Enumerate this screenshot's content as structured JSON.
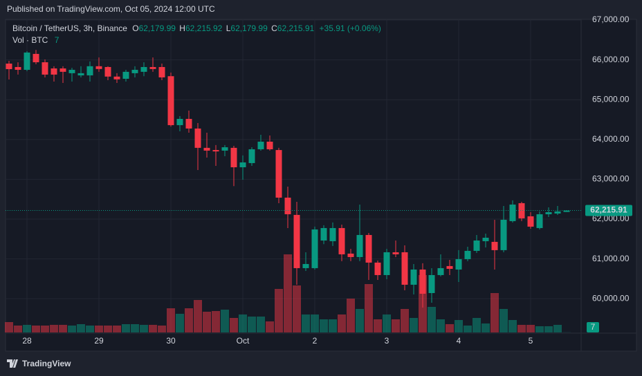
{
  "header": {
    "published": "Published on TradingView.com, Oct 05, 2024 12:00 UTC",
    "brand": "TradingView"
  },
  "chart_data": {
    "type": "candlestick",
    "title": "Bitcoin / TetherUS, 3h, Binance",
    "legend": {
      "o_label": "O",
      "o": "62,179.99",
      "h_label": "H",
      "h": "62,215.92",
      "l_label": "L",
      "l": "62,179.99",
      "c_label": "C",
      "c": "62,215.91",
      "change": "+35.91 (+0.06%)"
    },
    "volume_title": "Vol · BTC",
    "categories": [
      null,
      null,
      "28",
      null,
      null,
      null,
      null,
      null,
      null,
      null,
      "29",
      null,
      null,
      null,
      null,
      null,
      null,
      null,
      "30",
      null,
      null,
      null,
      null,
      null,
      null,
      null,
      "Oct",
      null,
      null,
      null,
      null,
      null,
      null,
      null,
      "2",
      null,
      null,
      null,
      null,
      null,
      null,
      null,
      "3",
      null,
      null,
      null,
      null,
      null,
      null,
      null,
      "4",
      null,
      null,
      null,
      null,
      null,
      null,
      null,
      "5",
      null,
      null,
      null,
      null
    ],
    "open": [
      65906,
      65820,
      65750,
      66150,
      65940,
      65785,
      65785,
      65665,
      65610,
      65610,
      65840,
      65820,
      65580,
      65525,
      65665,
      65700,
      65820,
      65820,
      65590,
      64360,
      64517,
      64275,
      63790,
      63735,
      63720,
      63790,
      63302,
      63407,
      63754,
      63945,
      63735,
      62539,
      62105,
      60768,
      60768,
      61462,
      61445,
      61775,
      61133,
      61046,
      61601,
      60907,
      60594,
      61167,
      61167,
      60351,
      60733,
      60142,
      60594,
      60820,
      60733,
      60994,
      61202,
      61445,
      61428,
      61220,
      61949,
      62400,
      62070,
      61775,
      62122,
      62140,
      62179.99
    ],
    "high": [
      65976,
      65940,
      66220,
      66250,
      66010,
      65840,
      65840,
      65800,
      65840,
      65960,
      66060,
      65840,
      65665,
      65750,
      65840,
      65940,
      66060,
      65906,
      65680,
      64587,
      64725,
      64413,
      64170,
      63860,
      63860,
      63840,
      63600,
      63806,
      64118,
      64100,
      63790,
      62816,
      62435,
      61167,
      61810,
      61845,
      61915,
      61862,
      61254,
      62365,
      61653,
      60959,
      61254,
      61462,
      61341,
      60872,
      60890,
      60768,
      61115,
      60976,
      61220,
      61306,
      61601,
      61636,
      61983,
      62330,
      62470,
      62435,
      62174,
      62192,
      62296,
      62330,
      62215.92
    ],
    "low": [
      65507,
      65630,
      65715,
      65890,
      65560,
      65455,
      65420,
      65455,
      65560,
      65455,
      65700,
      65490,
      65420,
      65455,
      65560,
      65590,
      65700,
      65490,
      64325,
      64205,
      64170,
      63233,
      63545,
      63337,
      63580,
      62830,
      62990,
      63337,
      63719,
      63720,
      62400,
      61775,
      60351,
      60698,
      60733,
      61370,
      61325,
      60942,
      60942,
      60942,
      60473,
      60473,
      60490,
      61046,
      60212,
      60108,
      59778,
      59900,
      60560,
      60594,
      60420,
      60942,
      61150,
      61289,
      60733,
      61167,
      61914,
      61949,
      61757,
      61740,
      62053,
      62105,
      62179.99
    ],
    "close": [
      65767,
      65750,
      66184,
      65940,
      65630,
      65630,
      65700,
      65750,
      65665,
      65840,
      65770,
      65580,
      65510,
      65700,
      65750,
      65820,
      65770,
      65560,
      64360,
      64517,
      64275,
      63790,
      63720,
      63700,
      63805,
      63302,
      63424,
      63754,
      63945,
      63754,
      62539,
      62122,
      60768,
      60872,
      61740,
      61775,
      61775,
      61115,
      61046,
      61601,
      60907,
      60594,
      61167,
      61115,
      60351,
      60733,
      60125,
      60594,
      60768,
      60750,
      60994,
      61202,
      61462,
      61532,
      61220,
      61983,
      62365,
      62018,
      61810,
      62122,
      62174,
      62192,
      62215.91
    ],
    "volume": [
      450,
      300,
      330,
      300,
      300,
      330,
      330,
      300,
      360,
      300,
      300,
      300,
      300,
      360,
      360,
      330,
      330,
      300,
      1050,
      810,
      1050,
      1410,
      900,
      930,
      990,
      630,
      780,
      690,
      690,
      480,
      1890,
      3390,
      2040,
      780,
      780,
      570,
      570,
      780,
      1470,
      1020,
      2100,
      570,
      780,
      570,
      1020,
      630,
      2490,
      1110,
      570,
      360,
      540,
      300,
      630,
      390,
      1710,
      1020,
      540,
      330,
      330,
      270,
      270,
      330,
      7
    ],
    "colors": {
      "up": "#089981",
      "down": "#f23645"
    },
    "ylim": [
      59135,
      67365
    ],
    "yticks": [
      {
        "value": 60000,
        "label": "60,000.00"
      },
      {
        "value": 61000,
        "label": "61,000.00"
      },
      {
        "value": 62000,
        "label": "62,000.00"
      },
      {
        "value": 63000,
        "label": "63,000.00"
      },
      {
        "value": 64000,
        "label": "64,000.00"
      },
      {
        "value": 65000,
        "label": "65,000.00"
      },
      {
        "value": 66000,
        "label": "66,000.00"
      },
      {
        "value": 67000,
        "label": "67,000.00"
      }
    ],
    "last_price": {
      "value": 62215.91,
      "label": "62,215.91"
    },
    "grid": true
  }
}
